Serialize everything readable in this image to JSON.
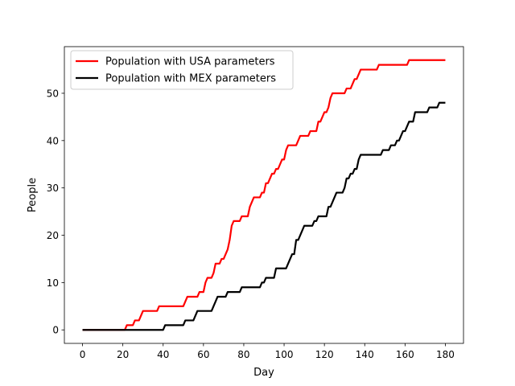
{
  "chart_data": {
    "type": "line",
    "title": "",
    "xlabel": "Day",
    "ylabel": "People",
    "xlim": [
      -9,
      189
    ],
    "ylim": [
      -2.85,
      59.85
    ],
    "xticks": [
      0,
      20,
      40,
      60,
      80,
      100,
      120,
      140,
      160,
      180
    ],
    "yticks": [
      0,
      10,
      20,
      30,
      40,
      50
    ],
    "grid": false,
    "legend": {
      "placement": "top-left"
    },
    "series": [
      {
        "name": "Population with USA parameters",
        "color": "#ff0000",
        "x": [
          0,
          21,
          22,
          23,
          24,
          25,
          26,
          27,
          28,
          29,
          30,
          31,
          32,
          33,
          34,
          35,
          36,
          37,
          38,
          39,
          40,
          41,
          42,
          43,
          44,
          45,
          46,
          47,
          48,
          49,
          50,
          51,
          52,
          53,
          54,
          55,
          56,
          57,
          58,
          59,
          60,
          61,
          62,
          63,
          64,
          65,
          66,
          67,
          68,
          69,
          70,
          71,
          72,
          73,
          74,
          75,
          76,
          77,
          78,
          79,
          80,
          81,
          82,
          83,
          84,
          85,
          86,
          87,
          88,
          89,
          90,
          91,
          92,
          93,
          94,
          95,
          96,
          97,
          98,
          99,
          100,
          101,
          102,
          103,
          104,
          105,
          106,
          107,
          108,
          109,
          110,
          111,
          112,
          113,
          114,
          115,
          116,
          117,
          118,
          119,
          120,
          121,
          122,
          123,
          124,
          125,
          126,
          127,
          128,
          129,
          130,
          131,
          132,
          133,
          134,
          135,
          136,
          137,
          138,
          139,
          140,
          141,
          142,
          143,
          144,
          145,
          146,
          147,
          148,
          149,
          150,
          160,
          161,
          162,
          163,
          180
        ],
        "y": [
          0,
          0,
          1,
          1,
          1,
          1,
          2,
          2,
          2,
          3,
          4,
          4,
          4,
          4,
          4,
          4,
          4,
          4,
          5,
          5,
          5,
          5,
          5,
          5,
          5,
          5,
          5,
          5,
          5,
          5,
          5,
          6,
          7,
          7,
          7,
          7,
          7,
          7,
          8,
          8,
          8,
          10,
          11,
          11,
          11,
          12,
          14,
          14,
          14,
          15,
          15,
          16,
          17,
          19,
          22,
          23,
          23,
          23,
          23,
          24,
          24,
          24,
          24,
          26,
          27,
          28,
          28,
          28,
          28,
          29,
          29,
          31,
          31,
          32,
          33,
          33,
          34,
          34,
          35,
          36,
          36,
          38,
          39,
          39,
          39,
          39,
          39,
          40,
          41,
          41,
          41,
          41,
          41,
          42,
          42,
          42,
          42,
          44,
          44,
          45,
          46,
          46,
          47,
          49,
          50,
          50,
          50,
          50,
          50,
          50,
          50,
          51,
          51,
          51,
          52,
          53,
          53,
          54,
          55,
          55,
          55,
          55,
          55,
          55,
          55,
          55,
          55,
          56,
          56,
          56,
          56,
          56,
          56,
          57,
          57,
          57
        ]
      },
      {
        "name": "Population with MEX parameters",
        "color": "#000000",
        "x": [
          0,
          40,
          41,
          42,
          43,
          44,
          45,
          46,
          47,
          48,
          49,
          50,
          51,
          52,
          53,
          54,
          55,
          56,
          57,
          58,
          59,
          60,
          61,
          62,
          63,
          64,
          65,
          66,
          67,
          68,
          69,
          70,
          71,
          72,
          73,
          74,
          75,
          76,
          77,
          78,
          79,
          80,
          81,
          82,
          83,
          84,
          85,
          86,
          87,
          88,
          89,
          90,
          91,
          92,
          93,
          94,
          95,
          96,
          97,
          98,
          99,
          100,
          101,
          102,
          103,
          104,
          105,
          106,
          107,
          108,
          109,
          110,
          111,
          112,
          113,
          114,
          115,
          116,
          117,
          118,
          119,
          120,
          121,
          122,
          123,
          124,
          125,
          126,
          127,
          128,
          129,
          130,
          131,
          132,
          133,
          134,
          135,
          136,
          137,
          138,
          139,
          140,
          141,
          142,
          143,
          144,
          145,
          146,
          147,
          148,
          149,
          150,
          151,
          152,
          153,
          154,
          155,
          156,
          157,
          158,
          159,
          160,
          161,
          162,
          163,
          164,
          165,
          166,
          167,
          168,
          169,
          170,
          171,
          172,
          173,
          174,
          175,
          176,
          177,
          178,
          179,
          180
        ],
        "y": [
          0,
          0,
          1,
          1,
          1,
          1,
          1,
          1,
          1,
          1,
          1,
          1,
          2,
          2,
          2,
          2,
          2,
          3,
          4,
          4,
          4,
          4,
          4,
          4,
          4,
          4,
          5,
          6,
          7,
          7,
          7,
          7,
          7,
          8,
          8,
          8,
          8,
          8,
          8,
          8,
          9,
          9,
          9,
          9,
          9,
          9,
          9,
          9,
          9,
          9,
          10,
          10,
          11,
          11,
          11,
          11,
          11,
          13,
          13,
          13,
          13,
          13,
          13,
          14,
          15,
          16,
          16,
          19,
          19,
          20,
          21,
          22,
          22,
          22,
          22,
          22,
          23,
          23,
          24,
          24,
          24,
          24,
          24,
          26,
          26,
          27,
          28,
          29,
          29,
          29,
          29,
          30,
          32,
          32,
          33,
          33,
          34,
          34,
          36,
          37,
          37,
          37,
          37,
          37,
          37,
          37,
          37,
          37,
          37,
          37,
          38,
          38,
          38,
          38,
          39,
          39,
          39,
          40,
          40,
          41,
          42,
          42,
          43,
          44,
          44,
          44,
          46,
          46,
          46,
          46,
          46,
          46,
          46,
          47,
          47,
          47,
          47,
          47,
          48,
          48,
          48,
          48
        ]
      }
    ]
  }
}
